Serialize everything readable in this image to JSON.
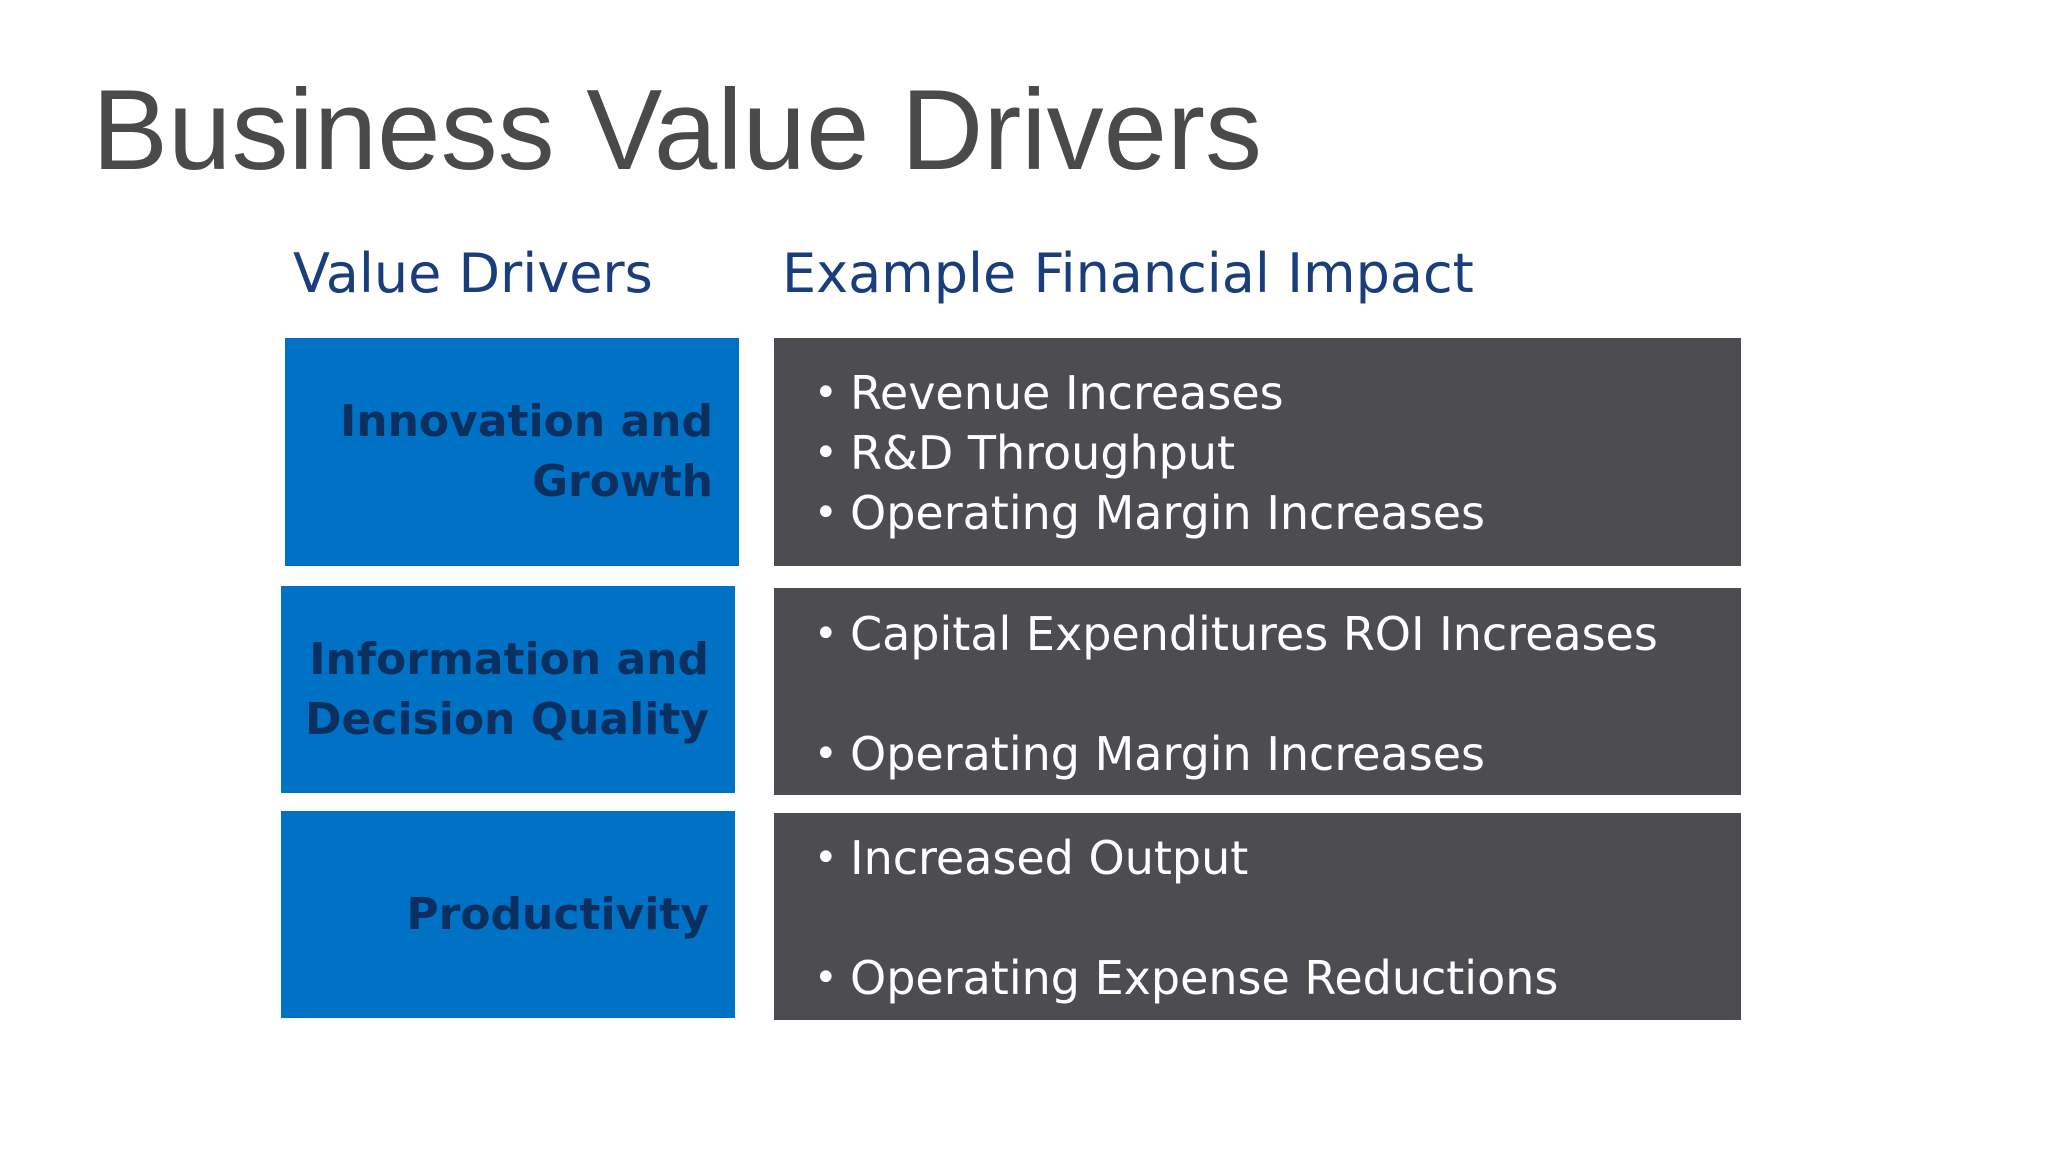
{
  "slide": {
    "title": "Business Value Drivers",
    "headers": {
      "left": "Value Drivers",
      "right": "Example Financial Impact"
    },
    "rows": [
      {
        "driver": "Innovation and\nGrowth",
        "impacts": [
          "Revenue Increases",
          "R&D Throughput",
          "Operating Margin Increases"
        ]
      },
      {
        "driver": "Information and\nDecision Quality",
        "impacts": [
          "Capital Expenditures ROI Increases",
          "Operating Margin Increases"
        ]
      },
      {
        "driver": "Productivity",
        "impacts": [
          "Increased Output",
          "Operating Expense Reductions"
        ]
      }
    ],
    "bullet_symbol": "•",
    "colors": {
      "driver_fill": "#0072c6",
      "driver_text": "#0b2f5e",
      "impact_fill": "#4d4c50",
      "impact_text": "#ffffff",
      "header_text": "#1a3d7c",
      "title_text": "#4a4a4c"
    }
  }
}
